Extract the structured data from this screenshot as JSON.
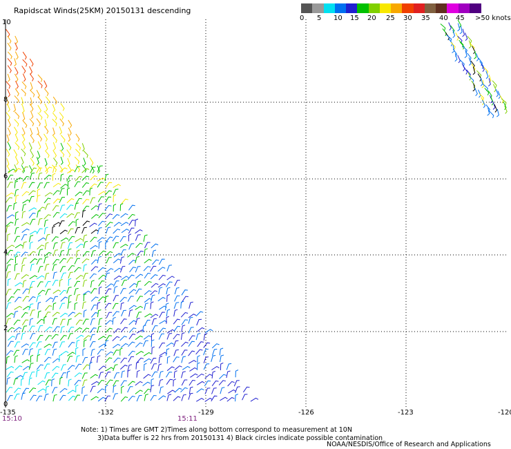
{
  "title": "Rapidscat Winds(25KM) 20150131 descending",
  "legend": {
    "swatches": [
      "#555555",
      "#999999",
      "#00e0f0",
      "#0070f0",
      "#2020d0",
      "#00c000",
      "#80d000",
      "#f8e800",
      "#f8a800",
      "#f04000",
      "#e02020",
      "#806040",
      "#603020",
      "#e000e0",
      "#a000c0",
      "#500080"
    ],
    "ticks": [
      "0",
      "5",
      "10",
      "15",
      "20",
      "25",
      "30",
      "35",
      "40",
      "45",
      ">50 knots"
    ]
  },
  "axes": {
    "x_labels": [
      "-135",
      "-132",
      "-129",
      "-126",
      "-123",
      "-120"
    ],
    "y_labels": [
      "0",
      "2",
      "4",
      "6",
      "8",
      "10"
    ]
  },
  "times": [
    "15:10",
    "15:11"
  ],
  "notes": {
    "line1": "Note: 1) Times are GMT 2)Times along bottom correspond to measurement at 10N",
    "line2": "3)Data buffer is 22 hrs from 20150131 4) Black circles indicate possible contamination",
    "credit": "NOAA/NESDIS/Office of Research and Applications"
  }
}
